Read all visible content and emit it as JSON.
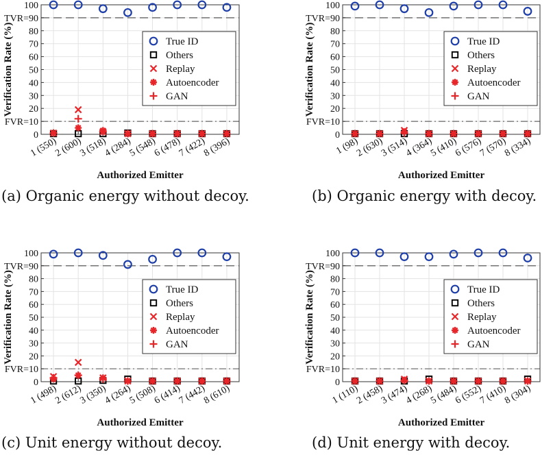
{
  "chart_data": [
    {
      "type": "scatter",
      "caption": "(a) Organic energy without decoy.",
      "ylabel": "Verification Rate (%)",
      "xlabel": "Authorized Emitter",
      "ylim": [
        0,
        100
      ],
      "yticks": [
        0,
        10,
        20,
        30,
        40,
        50,
        60,
        70,
        80,
        90,
        100
      ],
      "ytick_labels": [
        "0",
        "FVR=10",
        "20",
        "30",
        "40",
        "50",
        "60",
        "70",
        "80",
        "TVR=90",
        "100"
      ],
      "thresholds": {
        "tvr": 90,
        "fvr": 10
      },
      "categories": [
        "1 (550)",
        "2 (600)",
        "3 (518)",
        "4 (284)",
        "5 (548)",
        "6 (478)",
        "7 (422)",
        "8 (396)"
      ],
      "grid": true,
      "legend_position": "right",
      "series": [
        {
          "name": "True ID",
          "marker": "circle",
          "color": "#1f3fa8",
          "values": [
            100,
            100,
            97,
            94,
            98,
            100,
            100,
            98
          ]
        },
        {
          "name": "Others",
          "marker": "square",
          "color": "#000000",
          "values": [
            0.5,
            0.5,
            0.5,
            1,
            0.5,
            0.5,
            0.5,
            0.5
          ]
        },
        {
          "name": "Replay",
          "marker": "x",
          "color": "#e8262a",
          "values": [
            1,
            19,
            2,
            0.5,
            0.5,
            0.5,
            0.5,
            0.5
          ]
        },
        {
          "name": "Autoencoder",
          "marker": "asterisk",
          "color": "#e8262a",
          "values": [
            1,
            5,
            3,
            0.5,
            0.5,
            0.5,
            0.5,
            0.5
          ]
        },
        {
          "name": "GAN",
          "marker": "plus",
          "color": "#e8262a",
          "values": [
            1,
            12,
            2,
            0.5,
            0.5,
            0.5,
            0.5,
            0.5
          ]
        }
      ]
    },
    {
      "type": "scatter",
      "caption": "(b) Organic energy with decoy.",
      "ylabel": "Verification Rate (%)",
      "xlabel": "Authorized Emitter",
      "ylim": [
        0,
        100
      ],
      "yticks": [
        0,
        10,
        20,
        30,
        40,
        50,
        60,
        70,
        80,
        90,
        100
      ],
      "ytick_labels": [
        "0",
        "FVR=10",
        "20",
        "30",
        "40",
        "50",
        "60",
        "70",
        "80",
        "TVR=90",
        "100"
      ],
      "thresholds": {
        "tvr": 90,
        "fvr": 10
      },
      "categories": [
        "1 (98)",
        "2 (630)",
        "3 (514)",
        "4 (364)",
        "5 (410)",
        "6 (576)",
        "7 (570)",
        "8 (334)"
      ],
      "grid": true,
      "legend_position": "right",
      "series": [
        {
          "name": "True ID",
          "marker": "circle",
          "color": "#1f3fa8",
          "values": [
            99,
            100,
            97,
            94,
            99,
            100,
            100,
            95
          ]
        },
        {
          "name": "Others",
          "marker": "square",
          "color": "#000000",
          "values": [
            0.5,
            0.5,
            0.5,
            0.5,
            0.5,
            0.5,
            0.5,
            0.5
          ]
        },
        {
          "name": "Replay",
          "marker": "x",
          "color": "#e8262a",
          "values": [
            0.5,
            0.5,
            3,
            0.5,
            0.5,
            0.5,
            0.5,
            0.5
          ]
        },
        {
          "name": "Autoencoder",
          "marker": "asterisk",
          "color": "#e8262a",
          "values": [
            0.5,
            0.5,
            2,
            0.5,
            0.5,
            0.5,
            0.5,
            0.5
          ]
        },
        {
          "name": "GAN",
          "marker": "plus",
          "color": "#e8262a",
          "values": [
            0.5,
            0.5,
            1,
            0.5,
            0.5,
            0.5,
            0.5,
            0.5
          ]
        }
      ]
    },
    {
      "type": "scatter",
      "caption": "(c) Unit energy without decoy.",
      "ylabel": "Verification Rate (%)",
      "xlabel": "Authorized Emitter",
      "ylim": [
        0,
        100
      ],
      "yticks": [
        0,
        10,
        20,
        30,
        40,
        50,
        60,
        70,
        80,
        90,
        100
      ],
      "ytick_labels": [
        "0",
        "FVR=10",
        "20",
        "30",
        "40",
        "50",
        "60",
        "70",
        "80",
        "TVR=90",
        "100"
      ],
      "thresholds": {
        "tvr": 90,
        "fvr": 10
      },
      "categories": [
        "1 (498)",
        "2 (612)",
        "3 (350)",
        "4 (264)",
        "5 (508)",
        "6 (414)",
        "7 (442)",
        "8 (610)"
      ],
      "grid": true,
      "legend_position": "right",
      "series": [
        {
          "name": "True ID",
          "marker": "circle",
          "color": "#1f3fa8",
          "values": [
            99,
            100,
            98,
            91,
            95,
            100,
            100,
            97
          ]
        },
        {
          "name": "Others",
          "marker": "square",
          "color": "#000000",
          "values": [
            0.5,
            0.5,
            1,
            2,
            0.5,
            0.5,
            0.5,
            0.5
          ]
        },
        {
          "name": "Replay",
          "marker": "x",
          "color": "#e8262a",
          "values": [
            4,
            15,
            3,
            0.5,
            0.5,
            0.5,
            0.5,
            0.5
          ]
        },
        {
          "name": "Autoencoder",
          "marker": "asterisk",
          "color": "#e8262a",
          "values": [
            2,
            5,
            3,
            0.5,
            0.5,
            0.5,
            0.5,
            0.5
          ]
        },
        {
          "name": "GAN",
          "marker": "plus",
          "color": "#e8262a",
          "values": [
            3,
            5,
            2,
            0.5,
            0.5,
            0.5,
            0.5,
            0.5
          ]
        }
      ]
    },
    {
      "type": "scatter",
      "caption": "(d) Unit energy with decoy.",
      "ylabel": "Verification Rate (%)",
      "xlabel": "Authorized Emitter",
      "ylim": [
        0,
        100
      ],
      "yticks": [
        0,
        10,
        20,
        30,
        40,
        50,
        60,
        70,
        80,
        90,
        100
      ],
      "ytick_labels": [
        "0",
        "FVR=10",
        "20",
        "30",
        "40",
        "50",
        "60",
        "70",
        "80",
        "TVR=90",
        "100"
      ],
      "thresholds": {
        "tvr": 90,
        "fvr": 10
      },
      "categories": [
        "1 (110)",
        "2 (458)",
        "3 (474)",
        "4 (268)",
        "5 (484)",
        "6 (552)",
        "7 (410)",
        "8 (304)"
      ],
      "grid": true,
      "legend_position": "right",
      "series": [
        {
          "name": "True ID",
          "marker": "circle",
          "color": "#1f3fa8",
          "values": [
            100,
            100,
            97,
            97,
            99,
            100,
            100,
            96
          ]
        },
        {
          "name": "Others",
          "marker": "square",
          "color": "#000000",
          "values": [
            0.5,
            0.5,
            0.5,
            2,
            0.5,
            0.5,
            0.5,
            2
          ]
        },
        {
          "name": "Replay",
          "marker": "x",
          "color": "#e8262a",
          "values": [
            0.5,
            0.5,
            2,
            0.5,
            0.5,
            0.5,
            0.5,
            0.5
          ]
        },
        {
          "name": "Autoencoder",
          "marker": "asterisk",
          "color": "#e8262a",
          "values": [
            0.5,
            0.5,
            1,
            0.5,
            0.5,
            0.5,
            0.5,
            0.5
          ]
        },
        {
          "name": "GAN",
          "marker": "plus",
          "color": "#e8262a",
          "values": [
            0.5,
            0.5,
            1,
            0.5,
            0.5,
            0.5,
            0.5,
            0.5
          ]
        }
      ]
    }
  ]
}
